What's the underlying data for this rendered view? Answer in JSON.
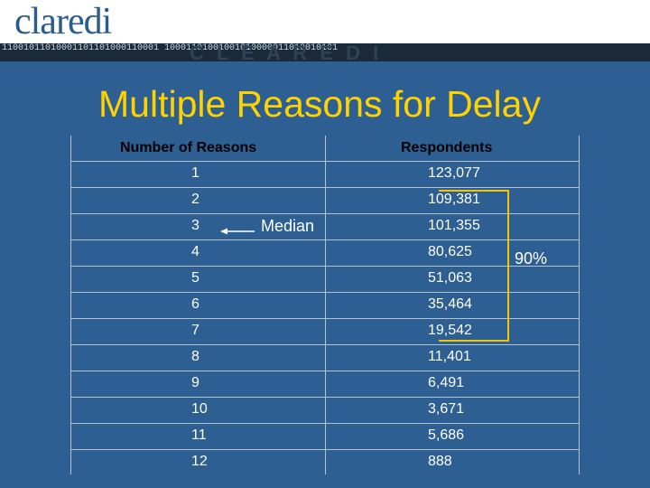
{
  "header": {
    "logo_text": "claredi",
    "binary_text": "11001011010001101101000110001 10001101001001010000011010010101",
    "ghost_text": "C L E A R E D I"
  },
  "title": "Multiple Reasons for Delay",
  "table": {
    "columns": [
      "Number of Reasons",
      "Respondents"
    ],
    "rows": [
      {
        "reasons": "1",
        "respondents": "123,077"
      },
      {
        "reasons": "2",
        "respondents": "109,381"
      },
      {
        "reasons": "3",
        "respondents": "101,355"
      },
      {
        "reasons": "4",
        "respondents": "80,625"
      },
      {
        "reasons": "5",
        "respondents": "51,063"
      },
      {
        "reasons": "6",
        "respondents": "35,464"
      },
      {
        "reasons": "7",
        "respondents": "19,542"
      },
      {
        "reasons": "8",
        "respondents": "11,401"
      },
      {
        "reasons": "9",
        "respondents": "6,491"
      },
      {
        "reasons": "10",
        "respondents": "3,671"
      },
      {
        "reasons": "11",
        "respondents": "5,686"
      },
      {
        "reasons": "12",
        "respondents": "888"
      }
    ]
  },
  "annotations": {
    "median_label": "Median",
    "bracket_label": "90%"
  },
  "colors": {
    "background": "#2d5f93",
    "title": "#ffd200",
    "bracket": "#f3c500",
    "header_text": "#000000",
    "cell_text": "#ffffff"
  }
}
